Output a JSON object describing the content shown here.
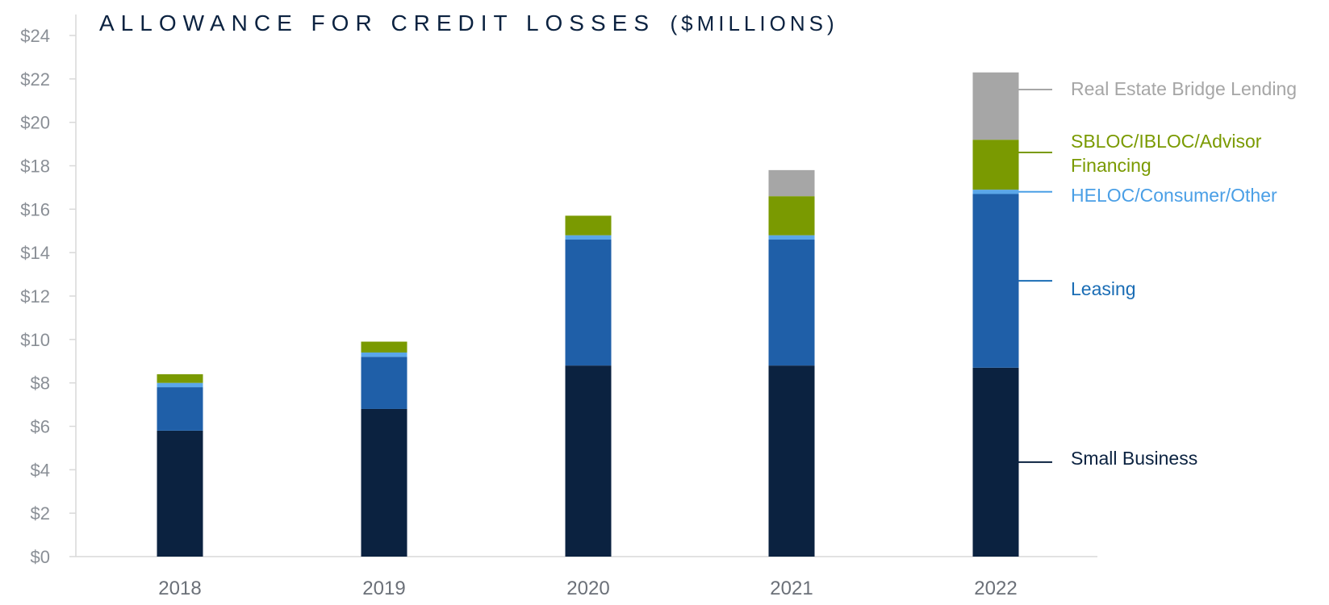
{
  "chart_data": {
    "type": "bar",
    "stacked": true,
    "title": "ALLOWANCE FOR CREDIT LOSSES",
    "subtitle": "($MILLIONS)",
    "categories": [
      "2018",
      "2019",
      "2020",
      "2021",
      "2022"
    ],
    "ylim": [
      0,
      24
    ],
    "yticks": [
      "$0",
      "$2",
      "$4",
      "$6",
      "$8",
      "$10",
      "$12",
      "$14",
      "$16",
      "$18",
      "$20",
      "$22",
      "$24"
    ],
    "grid": false,
    "legend_placement": "right",
    "series": [
      {
        "name": "Small Business",
        "color": "#0b2240",
        "values": [
          5.8,
          6.8,
          8.8,
          8.8,
          8.7
        ]
      },
      {
        "name": "Leasing",
        "color": "#1f5fa8",
        "values": [
          2.0,
          2.4,
          5.8,
          5.8,
          8.0
        ]
      },
      {
        "name": "HELOC/Consumer/Other",
        "color": "#5aa6e8",
        "values": [
          0.2,
          0.2,
          0.2,
          0.2,
          0.2
        ]
      },
      {
        "name": "SBLOC/IBLOC/Advisor Financing",
        "name_lines": [
          "SBLOC/IBLOC/Advisor",
          "Financing"
        ],
        "color": "#7a9a01",
        "values": [
          0.4,
          0.5,
          0.9,
          1.8,
          2.3
        ]
      },
      {
        "name": "Real Estate Bridge Lending",
        "color": "#a6a6a6",
        "values": [
          0,
          0,
          0,
          1.2,
          3.1
        ]
      }
    ],
    "legend_label_colors": {
      "Small Business": "#0b2240",
      "Leasing": "#1a6db5",
      "HELOC/Consumer/Other": "#4a9fe6",
      "SBLOC/IBLOC/Advisor Financing": "#7a9a01",
      "Real Estate Bridge Lending": "#a6a6a6"
    }
  }
}
